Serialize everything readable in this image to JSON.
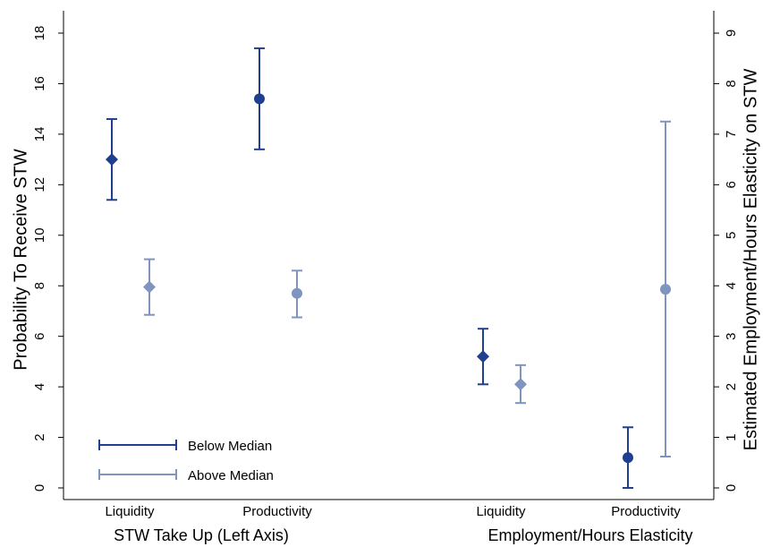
{
  "chart_data": {
    "type": "scatter",
    "left_axis": {
      "label": "Probability To Receive STW",
      "ylim": [
        0,
        18
      ],
      "ticks": [
        "0",
        "2",
        "4",
        "6",
        "8",
        "10",
        "12",
        "14",
        "16",
        "18"
      ]
    },
    "right_axis": {
      "label": "Estimated Employment/Hours Elasticity on STW",
      "ylim": [
        0,
        9
      ],
      "ticks": [
        "0",
        "1",
        "2",
        "3",
        "4",
        "5",
        "6",
        "7",
        "8",
        "9"
      ]
    },
    "groups": [
      {
        "label": "STW Take Up (Left Axis)",
        "categories": [
          "Liquidity",
          "Productivity"
        ]
      },
      {
        "label": "Employment/Hours Elasticity",
        "categories": [
          "Liquidity",
          "Productivity"
        ]
      }
    ],
    "series": [
      {
        "name": "Below Median",
        "color": "#1f3f8f",
        "points": [
          {
            "group": 0,
            "category": "Liquidity",
            "axis": "left",
            "marker": "diamond",
            "estimate": 13.0,
            "ci": [
              11.4,
              14.6
            ]
          },
          {
            "group": 0,
            "category": "Productivity",
            "axis": "left",
            "marker": "circle",
            "estimate": 15.4,
            "ci": [
              13.4,
              17.4
            ]
          },
          {
            "group": 1,
            "category": "Liquidity",
            "axis": "right",
            "marker": "diamond",
            "estimate": 2.6,
            "ci": [
              2.05,
              3.15
            ]
          },
          {
            "group": 1,
            "category": "Productivity",
            "axis": "right",
            "marker": "circle",
            "estimate": 0.6,
            "ci": [
              0.0,
              1.2
            ]
          }
        ]
      },
      {
        "name": "Above Median",
        "color": "#7f94be",
        "points": [
          {
            "group": 0,
            "category": "Liquidity",
            "axis": "left",
            "marker": "diamond",
            "estimate": 7.95,
            "ci": [
              6.85,
              9.05
            ]
          },
          {
            "group": 0,
            "category": "Productivity",
            "axis": "left",
            "marker": "circle",
            "estimate": 7.7,
            "ci": [
              6.75,
              8.6
            ]
          },
          {
            "group": 1,
            "category": "Liquidity",
            "axis": "right",
            "marker": "diamond",
            "estimate": 2.05,
            "ci": [
              1.68,
              2.43
            ]
          },
          {
            "group": 1,
            "category": "Productivity",
            "axis": "right",
            "marker": "circle",
            "estimate": 3.93,
            "ci": [
              0.62,
              7.25
            ]
          }
        ]
      }
    ],
    "legend": {
      "placement": "bottom-left",
      "items": [
        "Below Median",
        "Above Median"
      ]
    },
    "grid": false
  }
}
